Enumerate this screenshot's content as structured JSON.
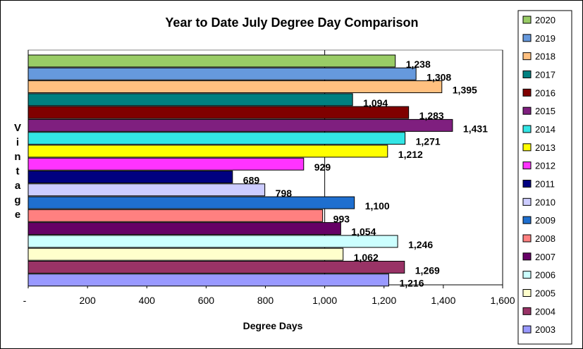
{
  "chart_data": {
    "type": "bar",
    "orientation": "horizontal",
    "title": "Year to Date July Degree Day Comparison",
    "xlabel": "Degree Days",
    "ylabel": "Vintage",
    "xlim": [
      0,
      1600
    ],
    "x_ticks": [
      "-",
      "200",
      "400",
      "600",
      "800",
      "1,000",
      "1,200",
      "1,400",
      "1,600"
    ],
    "grid": "vertical major gridlines at 1,000 and 1,600",
    "legend_position": "right",
    "categories": [
      "2020",
      "2019",
      "2018",
      "2017",
      "2016",
      "2015",
      "2014",
      "2013",
      "2012",
      "2011",
      "2010",
      "2009",
      "2008",
      "2007",
      "2006",
      "2005",
      "2004",
      "2003"
    ],
    "values": [
      1238,
      1308,
      1395,
      1094,
      1283,
      1431,
      1271,
      1212,
      929,
      689,
      798,
      1100,
      993,
      1054,
      1246,
      1062,
      1269,
      1216
    ],
    "data_labels": [
      "1,238",
      "1,308",
      "1,395",
      "1,094",
      "1,283",
      "1,431",
      "1,271",
      "1,212",
      "929",
      "689",
      "798",
      "1,100",
      "993",
      "1,054",
      "1,246",
      "1,062",
      "1,269",
      "1,216"
    ],
    "colors": [
      "#99cc66",
      "#6699dd",
      "#ffc080",
      "#008080",
      "#800000",
      "#7f1f7f",
      "#33e5e5",
      "#ffff00",
      "#ff33ff",
      "#000080",
      "#ccccff",
      "#1f6fcf",
      "#ff8080",
      "#660066",
      "#ccffff",
      "#ffffcc",
      "#993366",
      "#9999ff"
    ]
  }
}
